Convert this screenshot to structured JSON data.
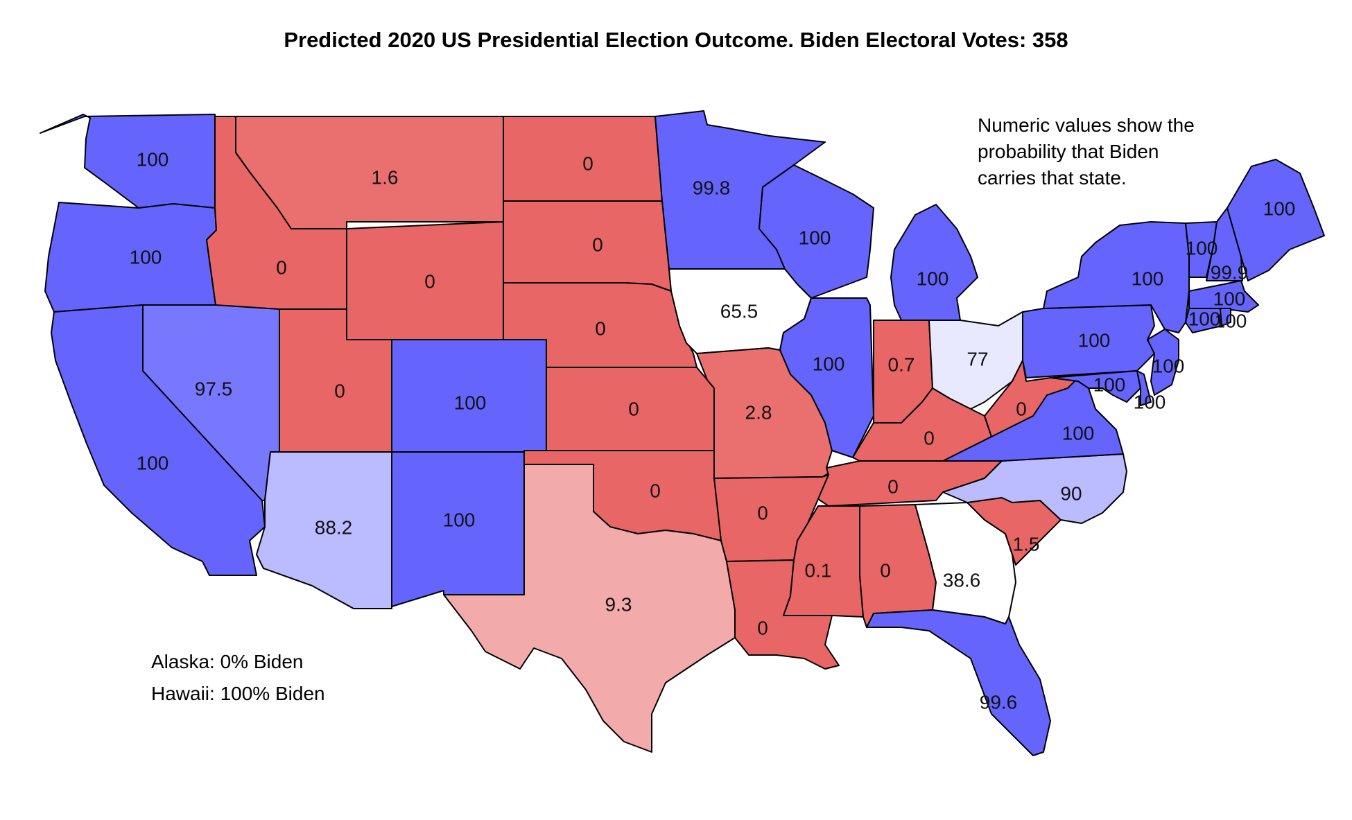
{
  "title": "Predicted 2020 US Presidential Election Outcome. Biden Electoral Votes: 358",
  "notes": {
    "probability_line1": "Numeric values show the",
    "probability_line2": "probability that Biden",
    "probability_line3": "carries that state.",
    "alaska": "Alaska: 0% Biden",
    "hawaii": "Hawaii: 100% Biden"
  },
  "colors": {
    "safe_dem": "#6565FE",
    "likely_dem": "#7878FE",
    "lean_dem": "#BBBBFF",
    "tilt_dem": "#E8E8FF",
    "tossup": "#FFFFFF",
    "lean_rep": "#F3AAAA",
    "likely_rep": "#EA7070",
    "safe_rep": "#E96666",
    "stroke": "#000000"
  },
  "chart_data": {
    "type": "choropleth",
    "title": "Predicted 2020 US Presidential Election Outcome. Biden Electoral Votes: 358",
    "value_meaning": "probability that Biden carries that state",
    "states": [
      {
        "state": "WA",
        "value": "100"
      },
      {
        "state": "OR",
        "value": "100"
      },
      {
        "state": "CA",
        "value": "100"
      },
      {
        "state": "NV",
        "value": "97.5"
      },
      {
        "state": "ID",
        "value": "0"
      },
      {
        "state": "MT",
        "value": "1.6"
      },
      {
        "state": "WY",
        "value": "0"
      },
      {
        "state": "UT",
        "value": "0"
      },
      {
        "state": "AZ",
        "value": "88.2"
      },
      {
        "state": "CO",
        "value": "100"
      },
      {
        "state": "NM",
        "value": "100"
      },
      {
        "state": "ND",
        "value": "0"
      },
      {
        "state": "SD",
        "value": "0"
      },
      {
        "state": "NE",
        "value": "0"
      },
      {
        "state": "KS",
        "value": "0"
      },
      {
        "state": "OK",
        "value": "0"
      },
      {
        "state": "TX",
        "value": "9.3"
      },
      {
        "state": "MN",
        "value": "99.8"
      },
      {
        "state": "IA",
        "value": "65.5"
      },
      {
        "state": "MO",
        "value": "2.8"
      },
      {
        "state": "AR",
        "value": "0"
      },
      {
        "state": "LA",
        "value": "0"
      },
      {
        "state": "WI",
        "value": "100"
      },
      {
        "state": "IL",
        "value": "100"
      },
      {
        "state": "MI",
        "value": "100"
      },
      {
        "state": "IN",
        "value": "0.7"
      },
      {
        "state": "OH",
        "value": "77"
      },
      {
        "state": "KY",
        "value": "0"
      },
      {
        "state": "TN",
        "value": "0"
      },
      {
        "state": "MS",
        "value": "0.1"
      },
      {
        "state": "AL",
        "value": "0"
      },
      {
        "state": "GA",
        "value": "38.6"
      },
      {
        "state": "FL",
        "value": "99.6"
      },
      {
        "state": "SC",
        "value": "1.5"
      },
      {
        "state": "NC",
        "value": "90"
      },
      {
        "state": "VA",
        "value": "100"
      },
      {
        "state": "WV",
        "value": "0"
      },
      {
        "state": "PA",
        "value": "100"
      },
      {
        "state": "NY",
        "value": "100"
      },
      {
        "state": "NJ",
        "value": "100"
      },
      {
        "state": "DE",
        "value": "100"
      },
      {
        "state": "MD",
        "value": "100"
      },
      {
        "state": "VT",
        "value": "100"
      },
      {
        "state": "NH",
        "value": "99.9"
      },
      {
        "state": "ME",
        "value": "100"
      },
      {
        "state": "MA",
        "value": "100"
      },
      {
        "state": "CT",
        "value": "100"
      },
      {
        "state": "RI",
        "value": "100"
      },
      {
        "state": "AK",
        "value": "0"
      },
      {
        "state": "HI",
        "value": "100"
      }
    ]
  }
}
